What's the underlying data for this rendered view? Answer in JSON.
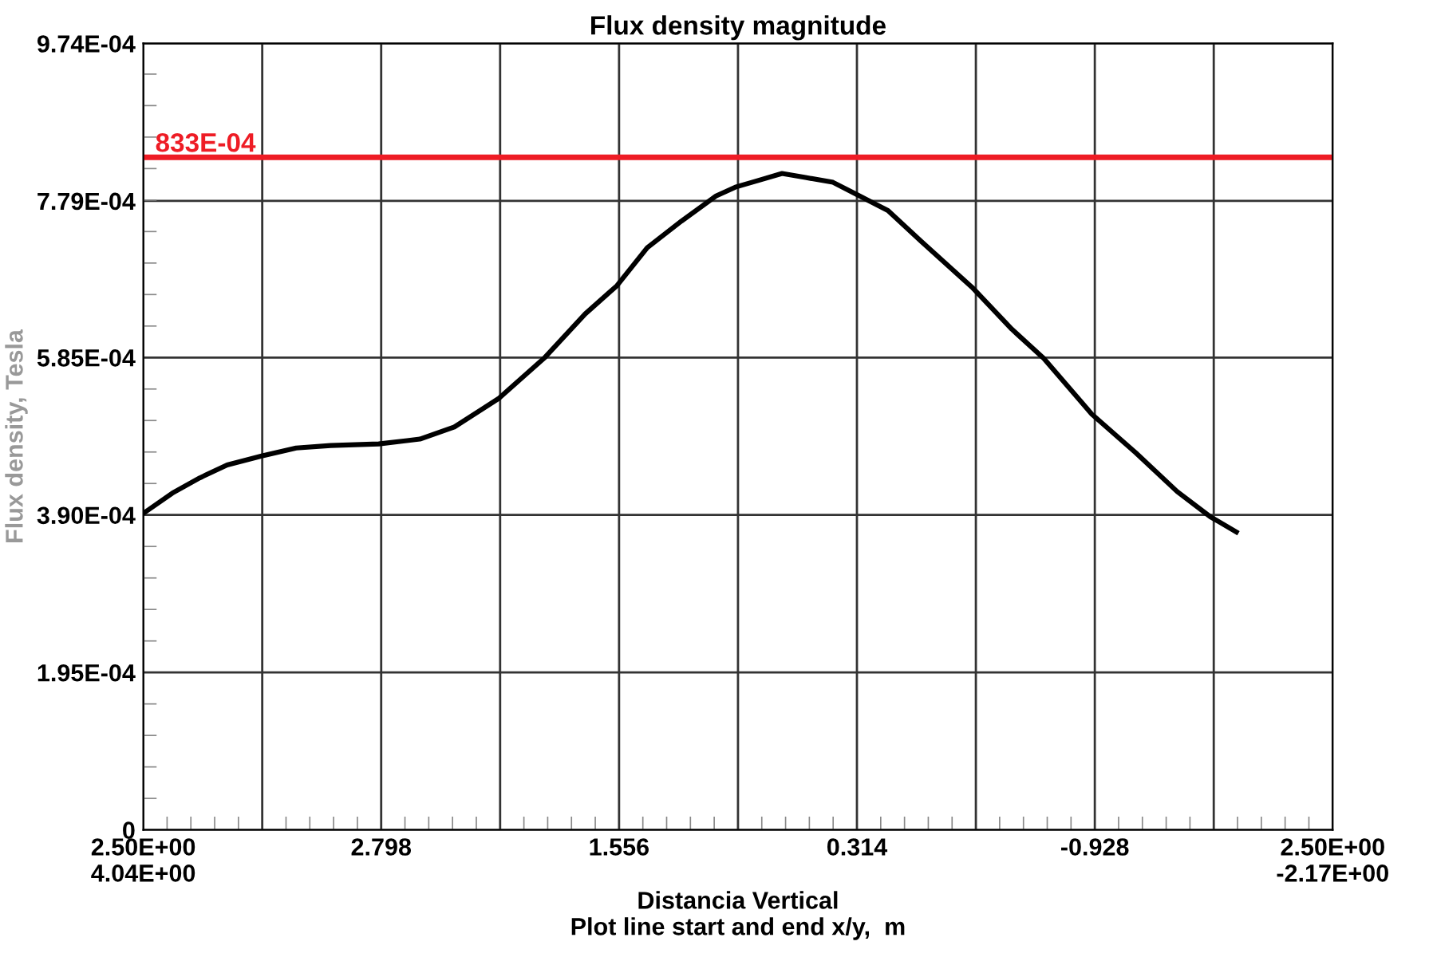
{
  "chart_data": {
    "type": "line",
    "title": "Flux density magnitude",
    "xlabel": "Distancia Vertical\nPlot line start and end x/y,  m",
    "ylabel": "Flux density, Tesla",
    "x": [
      4.04,
      3.889,
      3.745,
      3.602,
      3.422,
      3.242,
      3.062,
      2.811,
      2.596,
      2.416,
      2.186,
      1.948,
      1.733,
      1.567,
      1.409,
      1.23,
      1.05,
      0.949,
      0.834,
      0.705,
      0.583,
      0.439,
      0.324,
      0.152,
      -0.021,
      -0.287,
      -0.495,
      -0.661,
      -0.912,
      -1.142,
      -1.358,
      -1.53,
      -1.667
    ],
    "series": [
      {
        "color": "#000000",
        "values": [
          0.000392,
          0.000417,
          0.000436,
          0.000452,
          0.000463,
          0.000473,
          0.000476,
          0.000478,
          0.000484,
          0.000499,
          0.000534,
          0.000584,
          0.000639,
          0.000674,
          0.000721,
          0.000754,
          0.000785,
          0.000796,
          0.000804,
          0.000813,
          0.000808,
          0.000802,
          0.000788,
          0.000767,
          0.000729,
          0.000672,
          0.00062,
          0.000584,
          0.000515,
          0.000467,
          0.000419,
          0.000388,
          0.000369
        ]
      }
    ],
    "xlim": [
      4.04,
      -2.17
    ],
    "xticks": [
      {
        "value": 4.04,
        "label": "2.50E+00\n4.04E+00"
      },
      {
        "value": 3.419,
        "label": null
      },
      {
        "value": 2.798,
        "label": "2.798"
      },
      {
        "value": 2.177,
        "label": null
      },
      {
        "value": 1.556,
        "label": "1.556"
      },
      {
        "value": 0.935,
        "label": null
      },
      {
        "value": 0.314,
        "label": "0.314"
      },
      {
        "value": -0.307,
        "label": null
      },
      {
        "value": -0.928,
        "label": "-0.928"
      },
      {
        "value": -1.549,
        "label": null
      },
      {
        "value": -2.17,
        "label": "2.50E+00\n-2.17E+00"
      }
    ],
    "ylim": [
      0,
      0.000974
    ],
    "yticks": [
      0,
      {
        "value": 0.000195,
        "label": "1.95E-04"
      },
      {
        "value": 0.00039,
        "label": "3.90E-04"
      },
      {
        "value": 0.000585,
        "label": "5.85E-04"
      },
      {
        "value": 0.000779,
        "label": "7.79E-04"
      },
      {
        "value": 0.000974,
        "label": "9.74E-04"
      }
    ],
    "ref_lines": [
      {
        "axis": "y",
        "value": 0.000833,
        "label": "833E-04",
        "color": "#ee1c25",
        "line_style": "solid"
      }
    ],
    "grid": true,
    "marker": "none",
    "line_style": "solid"
  }
}
